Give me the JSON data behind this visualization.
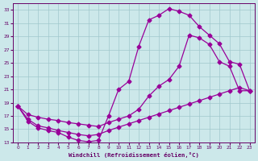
{
  "xlabel": "Windchill (Refroidissement éolien,°C)",
  "bg_color": "#cce8ea",
  "line_color": "#990099",
  "grid_color": "#a0c8cc",
  "ylim": [
    13,
    34
  ],
  "xlim": [
    -0.5,
    23.5
  ],
  "yticks": [
    13,
    15,
    17,
    19,
    21,
    23,
    25,
    27,
    29,
    31,
    33
  ],
  "xticks": [
    0,
    1,
    2,
    3,
    4,
    5,
    6,
    7,
    8,
    9,
    10,
    11,
    12,
    13,
    14,
    15,
    16,
    17,
    18,
    19,
    20,
    21,
    22,
    23
  ],
  "curve1_x": [
    0,
    1,
    2,
    3,
    4,
    5,
    6,
    7,
    8,
    9,
    10,
    11,
    12,
    13,
    14,
    15,
    16,
    17,
    18,
    19,
    20,
    21,
    22,
    23
  ],
  "curve1_y": [
    18.5,
    16.2,
    15.2,
    14.8,
    14.5,
    13.8,
    13.3,
    13.1,
    13.3,
    17.0,
    21.0,
    22.2,
    27.5,
    31.5,
    32.2,
    33.2,
    32.8,
    32.2,
    30.5,
    29.2,
    27.9,
    25.2,
    24.8,
    20.8
  ],
  "curve2_x": [
    0,
    1,
    2,
    3,
    4,
    5,
    6,
    7,
    8,
    9,
    10,
    11,
    12,
    13,
    14,
    15,
    16,
    17,
    18,
    19,
    20,
    21,
    22,
    23
  ],
  "curve2_y": [
    18.5,
    17.2,
    16.8,
    16.5,
    16.3,
    16.0,
    15.8,
    15.6,
    15.4,
    16.0,
    16.5,
    17.0,
    18.0,
    20.0,
    21.5,
    22.5,
    24.5,
    29.2,
    28.8,
    27.8,
    25.2,
    24.5,
    20.8,
    20.8
  ],
  "curve3_x": [
    0,
    1,
    2,
    3,
    4,
    5,
    6,
    7,
    8,
    9,
    10,
    11,
    12,
    13,
    14,
    15,
    16,
    17,
    18,
    19,
    20,
    21,
    22,
    23
  ],
  "curve3_y": [
    18.5,
    16.5,
    15.5,
    15.2,
    14.8,
    14.5,
    14.2,
    14.0,
    14.2,
    14.8,
    15.3,
    15.8,
    16.3,
    16.8,
    17.3,
    17.8,
    18.3,
    18.8,
    19.3,
    19.8,
    20.3,
    20.8,
    21.3,
    20.8
  ]
}
